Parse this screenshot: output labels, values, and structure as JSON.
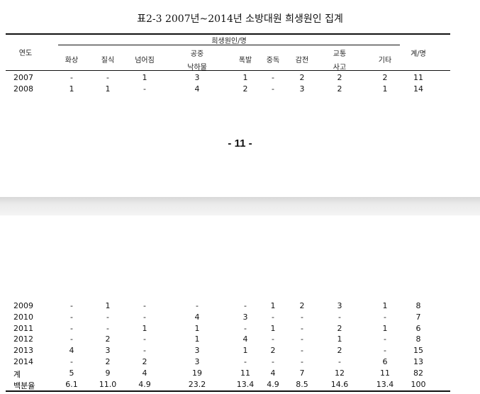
{
  "title": "표2-3  2007년~2014년 소방대원 희생원인 집계",
  "header": {
    "year": "연도",
    "group": "희생원인/명",
    "total": "계/명",
    "causes": [
      {
        "l1": "화상",
        "l2": ""
      },
      {
        "l1": "질식",
        "l2": ""
      },
      {
        "l1": "넘어짐",
        "l2": ""
      },
      {
        "l1": "공중",
        "l2": "낙하물"
      },
      {
        "l1": "폭발",
        "l2": ""
      },
      {
        "l1": "중독",
        "l2": ""
      },
      {
        "l1": "감전",
        "l2": ""
      },
      {
        "l1": "교통",
        "l2": "사고"
      },
      {
        "l1": "기타",
        "l2": ""
      }
    ]
  },
  "rows_top": [
    {
      "year": "2007",
      "vals": [
        "-",
        "-",
        "1",
        "3",
        "1",
        "-",
        "2",
        "2",
        "2"
      ],
      "total": "11"
    },
    {
      "year": "2008",
      "vals": [
        "1",
        "1",
        "-",
        "4",
        "2",
        "-",
        "3",
        "2",
        "1"
      ],
      "total": "14"
    }
  ],
  "page_number": "- 11 -",
  "rows_bottom": [
    {
      "year": "2009",
      "vals": [
        "-",
        "1",
        "-",
        "-",
        "-",
        "1",
        "2",
        "3",
        "1"
      ],
      "total": "8"
    },
    {
      "year": "2010",
      "vals": [
        "-",
        "-",
        "-",
        "4",
        "3",
        "-",
        "-",
        "-",
        "-"
      ],
      "total": "7"
    },
    {
      "year": "2011",
      "vals": [
        "-",
        "-",
        "1",
        "1",
        "-",
        "1",
        "-",
        "2",
        "1"
      ],
      "total": "6"
    },
    {
      "year": "2012",
      "vals": [
        "-",
        "2",
        "-",
        "1",
        "4",
        "-",
        "-",
        "1",
        "-"
      ],
      "total": "8"
    },
    {
      "year": "2013",
      "vals": [
        "4",
        "3",
        "-",
        "3",
        "1",
        "2",
        "-",
        "2",
        "-"
      ],
      "total": "15"
    },
    {
      "year": "2014",
      "vals": [
        "-",
        "2",
        "2",
        "3",
        "-",
        "-",
        "-",
        "-",
        "6"
      ],
      "total": "13"
    },
    {
      "year": "계",
      "vals": [
        "5",
        "9",
        "4",
        "19",
        "11",
        "4",
        "7",
        "12",
        "11"
      ],
      "total": "82"
    },
    {
      "year": "백분율",
      "vals": [
        "6.1",
        "11.0",
        "4.9",
        "23.2",
        "13.4",
        "4.9",
        "8.5",
        "14.6",
        "13.4"
      ],
      "total": "100"
    }
  ]
}
